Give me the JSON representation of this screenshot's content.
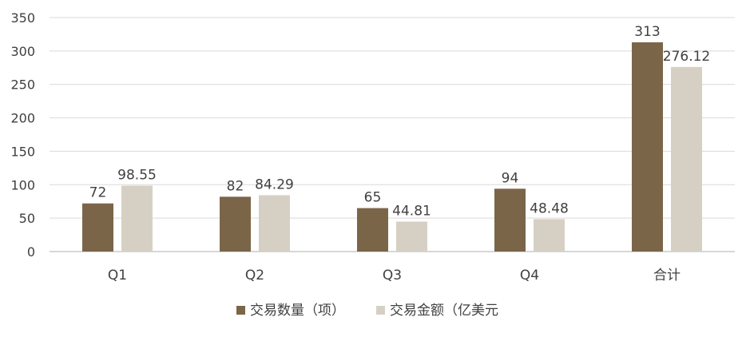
{
  "chart_data": {
    "type": "bar",
    "categories": [
      "Q1",
      "Q2",
      "Q3",
      "Q4",
      "合计"
    ],
    "series": [
      {
        "name": "交易数量（项）",
        "values": [
          72,
          82,
          65,
          94,
          313
        ],
        "labels": [
          "72",
          "82",
          "65",
          "94",
          "313"
        ],
        "color": "#7b6549"
      },
      {
        "name": "交易金额（亿美元",
        "values": [
          98.55,
          84.29,
          44.81,
          48.48,
          276.12
        ],
        "labels": [
          "98.55",
          "84.29",
          "44.81",
          "48.48",
          "276.12"
        ],
        "color": "#d6d0c4"
      }
    ],
    "ylim": [
      0,
      350
    ],
    "yticks": [
      0,
      50,
      100,
      150,
      200,
      250,
      300,
      350
    ],
    "ytick_labels": [
      "0",
      "50",
      "100",
      "150",
      "200",
      "250",
      "300",
      "350"
    ],
    "grid": true,
    "legend_position": "bottom",
    "title": "",
    "xlabel": "",
    "ylabel": "",
    "colors": {
      "grid": "#d9d9d9",
      "axis": "#bfbfbf",
      "text": "#404040"
    }
  }
}
